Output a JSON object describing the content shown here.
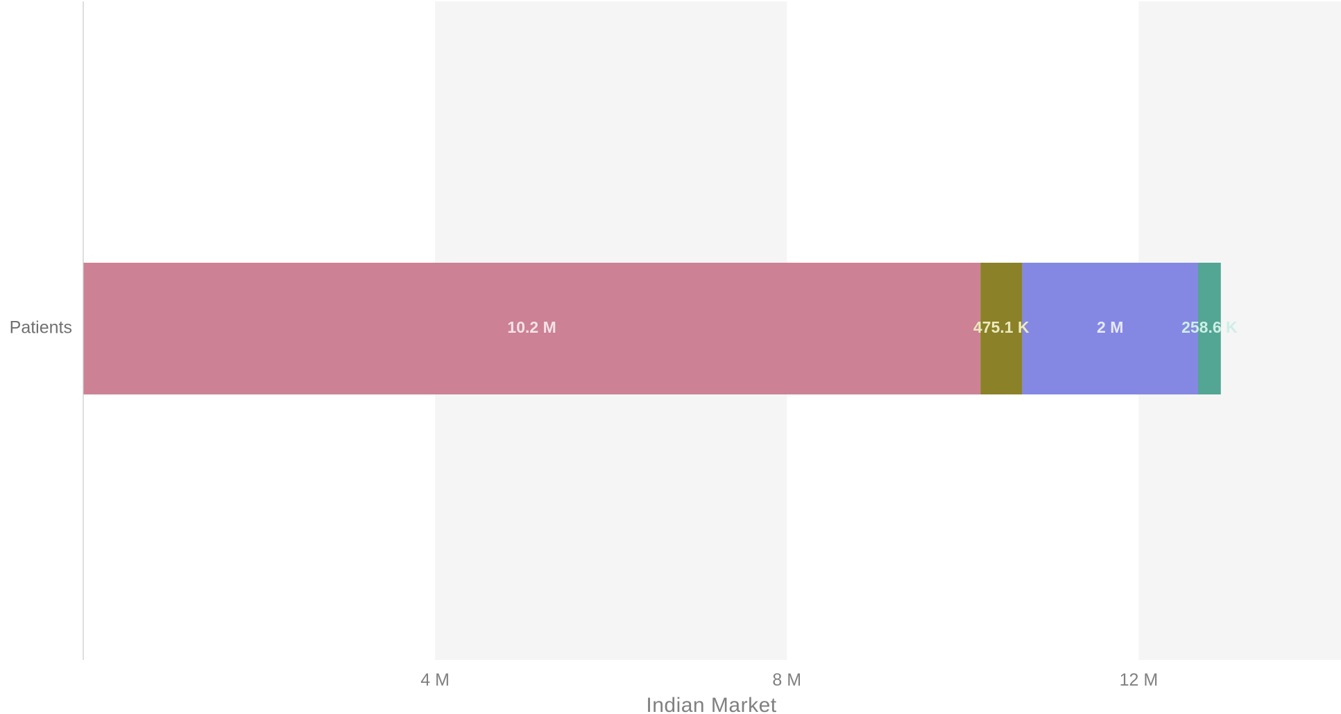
{
  "chart_data": {
    "type": "bar",
    "orientation": "horizontal",
    "stacked": true,
    "categories": [
      "Patients"
    ],
    "series": [
      {
        "values": [
          10200000
        ],
        "value_label": "10.2 M",
        "color": "#cc8195",
        "label_color": "#f4e3e8"
      },
      {
        "values": [
          475100
        ],
        "value_label": "475.1 K",
        "color": "#8a8129",
        "label_color": "#ecebbe"
      },
      {
        "values": [
          2000000
        ],
        "value_label": "2 M",
        "color": "#8488e3",
        "label_color": "#e6e8fb"
      },
      {
        "values": [
          258600
        ],
        "value_label": "258.6 K",
        "color": "#53a594",
        "label_color": "#cdeee6"
      }
    ],
    "xlabel": "Indian  Market",
    "ylabel": "",
    "xlim": [
      0,
      14300000
    ],
    "x_ticks": [
      {
        "value": 4000000,
        "label": "4 M"
      },
      {
        "value": 8000000,
        "label": "8 M"
      },
      {
        "value": 12000000,
        "label": "12 M"
      }
    ],
    "alternating_bands": true,
    "band_color": "#f5f5f5",
    "grid": false,
    "legend": "none"
  }
}
